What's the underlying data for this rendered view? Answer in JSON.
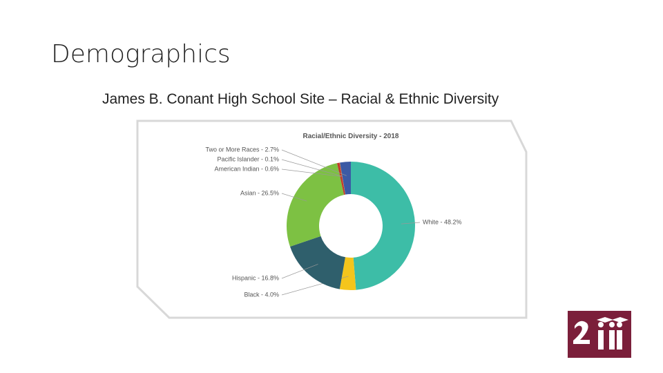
{
  "header": {
    "title": "Demographics",
    "subtitle": "James B. Conant High School Site – Racial & Ethnic Diversity"
  },
  "chart_data": {
    "type": "donut",
    "title": "Racial/Ethnic Diversity - 2018",
    "labels": [
      "White - 48.2%",
      "Black - 4.0%",
      "Hispanic - 16.8%",
      "Asian - 26.5%",
      "American Indian - 0.6%",
      "Pacific Islander - 0.1%",
      "Two or More Races - 2.7%"
    ],
    "values": [
      48.2,
      4.0,
      16.8,
      26.5,
      0.6,
      0.1,
      2.7
    ],
    "colors": [
      "#3dbda7",
      "#f4c51c",
      "#2f5f6c",
      "#7dc143",
      "#c0392b",
      "#e67e22",
      "#3b5aa5"
    ]
  }
}
